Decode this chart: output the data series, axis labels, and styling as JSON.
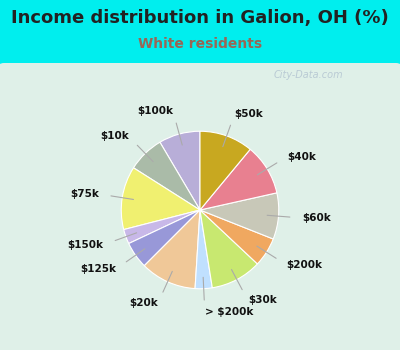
{
  "title": "Income distribution in Galion, OH (%)",
  "subtitle": "White residents",
  "title_color": "#222222",
  "subtitle_color": "#996655",
  "background_color": "#00eeee",
  "chart_bg_grad_top": "#e8f5f0",
  "chart_bg_grad_bottom": "#c8edd8",
  "watermark": "City-Data.com",
  "labels": [
    "$100k",
    "$10k",
    "$75k",
    "$150k",
    "$125k",
    "$20k",
    "> $200k",
    "$30k",
    "$200k",
    "$60k",
    "$40k",
    "$50k"
  ],
  "values": [
    8.5,
    7.5,
    13.0,
    3.0,
    5.5,
    11.5,
    3.5,
    10.5,
    6.0,
    9.5,
    10.5,
    11.0
  ],
  "colors": [
    "#b8aed8",
    "#aabba8",
    "#f0f070",
    "#c8b8e8",
    "#9898d8",
    "#f0c898",
    "#c0e0ff",
    "#c8e870",
    "#f0a860",
    "#c8c8b8",
    "#e88090",
    "#c8a820"
  ],
  "startangle": 90,
  "label_fontsize": 7.5,
  "title_fontsize": 13,
  "subtitle_fontsize": 10,
  "figsize": [
    4.0,
    3.5
  ],
  "dpi": 100
}
